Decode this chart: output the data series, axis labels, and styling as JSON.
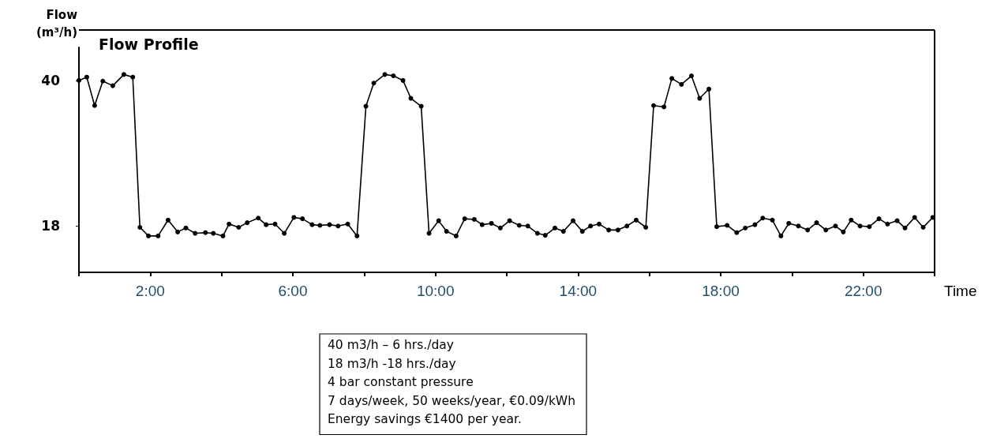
{
  "chart_data": {
    "type": "line",
    "title": "Flow Profile",
    "xlabel": "Time",
    "ylabel": "Flow (m³/h)",
    "annotations": [
      "40 m3/h – 6 hrs./day",
      "18 m3/h -18 hrs./day",
      "4 bar constant pressure",
      "7 days/week, 50 weeks/year, €0.09/kWh",
      "Energy savings €1400 per year."
    ],
    "xlim": [
      0,
      24
    ],
    "xticks": [
      {
        "value": 0,
        "label": null
      },
      {
        "value": 2,
        "label": "2:00"
      },
      {
        "value": 4,
        "label": null
      },
      {
        "value": 6,
        "label": "6:00"
      },
      {
        "value": 8,
        "label": null
      },
      {
        "value": 10,
        "label": "10:00"
      },
      {
        "value": 12,
        "label": null
      },
      {
        "value": 14,
        "label": "14:00"
      },
      {
        "value": 16,
        "label": null
      },
      {
        "value": 18,
        "label": "18:00"
      },
      {
        "value": 20,
        "label": null
      },
      {
        "value": 22,
        "label": "22:00"
      },
      {
        "value": 24,
        "label": null
      }
    ],
    "ylim": [
      11,
      45
    ],
    "yticks": [
      18,
      40
    ],
    "grid": false,
    "marker": "circle",
    "line_style": "solid",
    "series": [
      {
        "color": "#000000",
        "x": [
          0,
          0.22,
          0.44,
          0.67,
          0.95,
          1.26,
          1.51,
          1.71,
          1.95,
          2.22,
          2.5,
          2.77,
          3.0,
          3.26,
          3.55,
          3.77,
          4.04,
          4.21,
          4.48,
          4.72,
          5.03,
          5.25,
          5.5,
          5.76,
          6.03,
          6.27,
          6.54,
          6.76,
          7.03,
          7.27,
          7.54,
          7.8,
          8.05,
          8.27,
          8.58,
          8.82,
          9.09,
          9.31,
          9.6,
          9.82,
          10.09,
          10.31,
          10.58,
          10.82,
          11.09,
          11.31,
          11.57,
          11.82,
          12.08,
          12.35,
          12.59,
          12.86,
          13.08,
          13.35,
          13.59,
          13.86,
          14.12,
          14.35,
          14.59,
          14.86,
          15.12,
          15.37,
          15.63,
          15.9,
          16.12,
          16.41,
          16.63,
          16.9,
          17.18,
          17.41,
          17.67,
          17.89,
          18.18,
          18.45,
          18.69,
          18.96,
          19.18,
          19.45,
          19.69,
          19.91,
          20.18,
          20.44,
          20.69,
          20.95,
          21.22,
          21.44,
          21.66,
          21.91,
          22.17,
          22.44,
          22.68,
          22.95,
          23.17,
          23.44,
          23.68,
          23.95
        ],
        "values": [
          40,
          40.5,
          36.2,
          39.9,
          39.2,
          40.9,
          40.5,
          17.8,
          16.5,
          16.5,
          18.9,
          17.1,
          17.7,
          16.9,
          17,
          16.9,
          16.5,
          18.3,
          17.8,
          18.5,
          19.2,
          18.2,
          18.3,
          16.9,
          19.3,
          19.1,
          18.2,
          18.1,
          18.2,
          18,
          18.3,
          16.5,
          36.1,
          39.6,
          40.9,
          40.7,
          40,
          37.3,
          36.1,
          16.9,
          18.8,
          17.2,
          16.5,
          19.1,
          19,
          18.2,
          18.4,
          17.7,
          18.8,
          18.1,
          18,
          16.9,
          16.6,
          17.7,
          17.2,
          18.8,
          17.2,
          18,
          18.3,
          17.4,
          17.4,
          18,
          18.9,
          17.8,
          36.2,
          36,
          40.3,
          39.4,
          40.7,
          37.3,
          38.7,
          17.9,
          18.1,
          17,
          17.7,
          18.2,
          19.2,
          18.9,
          16.5,
          18.4,
          18,
          17.4,
          18.5,
          17.4,
          18,
          17.1,
          18.9,
          18,
          17.9,
          19.1,
          18.3,
          18.8,
          17.7,
          19.3,
          17.8,
          19.3
        ]
      }
    ]
  }
}
